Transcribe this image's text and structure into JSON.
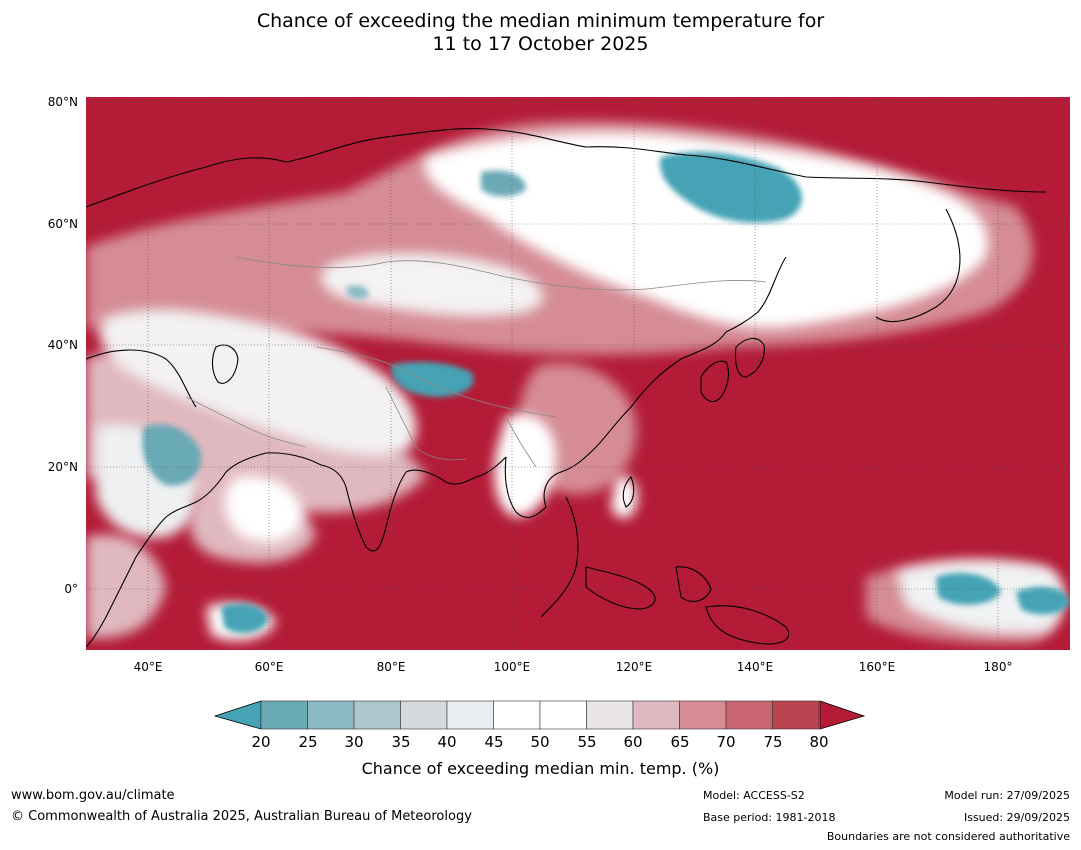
{
  "title": {
    "line1": "Chance of exceeding the median minimum temperature for",
    "line2": "11 to 17 October 2025"
  },
  "map": {
    "lat_labels": [
      "80°N",
      "60°N",
      "40°N",
      "20°N",
      "0°"
    ],
    "lon_labels": [
      "40°E",
      "60°E",
      "80°E",
      "100°E",
      "120°E",
      "140°E",
      "160°E",
      "180°"
    ],
    "background_color": "#b31b37"
  },
  "colorbar": {
    "ticks": [
      "20",
      "25",
      "30",
      "35",
      "40",
      "45",
      "50",
      "55",
      "60",
      "65",
      "70",
      "75",
      "80"
    ],
    "colors": [
      "#45a3b5",
      "#6aa9b6",
      "#8bbac5",
      "#adc6cc",
      "#d4dadb",
      "#e9eef0",
      "#ffffff",
      "#ffffff",
      "#eae6e8",
      "#e0b8bf",
      "#d58c95",
      "#c86571",
      "#bc4451",
      "#b31b37"
    ],
    "label": "Chance of exceeding median min. temp. (%)"
  },
  "footer": {
    "website": "www.bom.gov.au/climate",
    "copyright": "© Commonwealth of Australia 2025, Australian Bureau of Meteorology",
    "model": "Model: ACCESS-S2",
    "base_period": "Base period: 1981-2018",
    "model_run": "Model run: 27/09/2025",
    "issued": "Issued: 29/09/2025",
    "disclaimer": "Boundaries are not considered authoritative"
  }
}
